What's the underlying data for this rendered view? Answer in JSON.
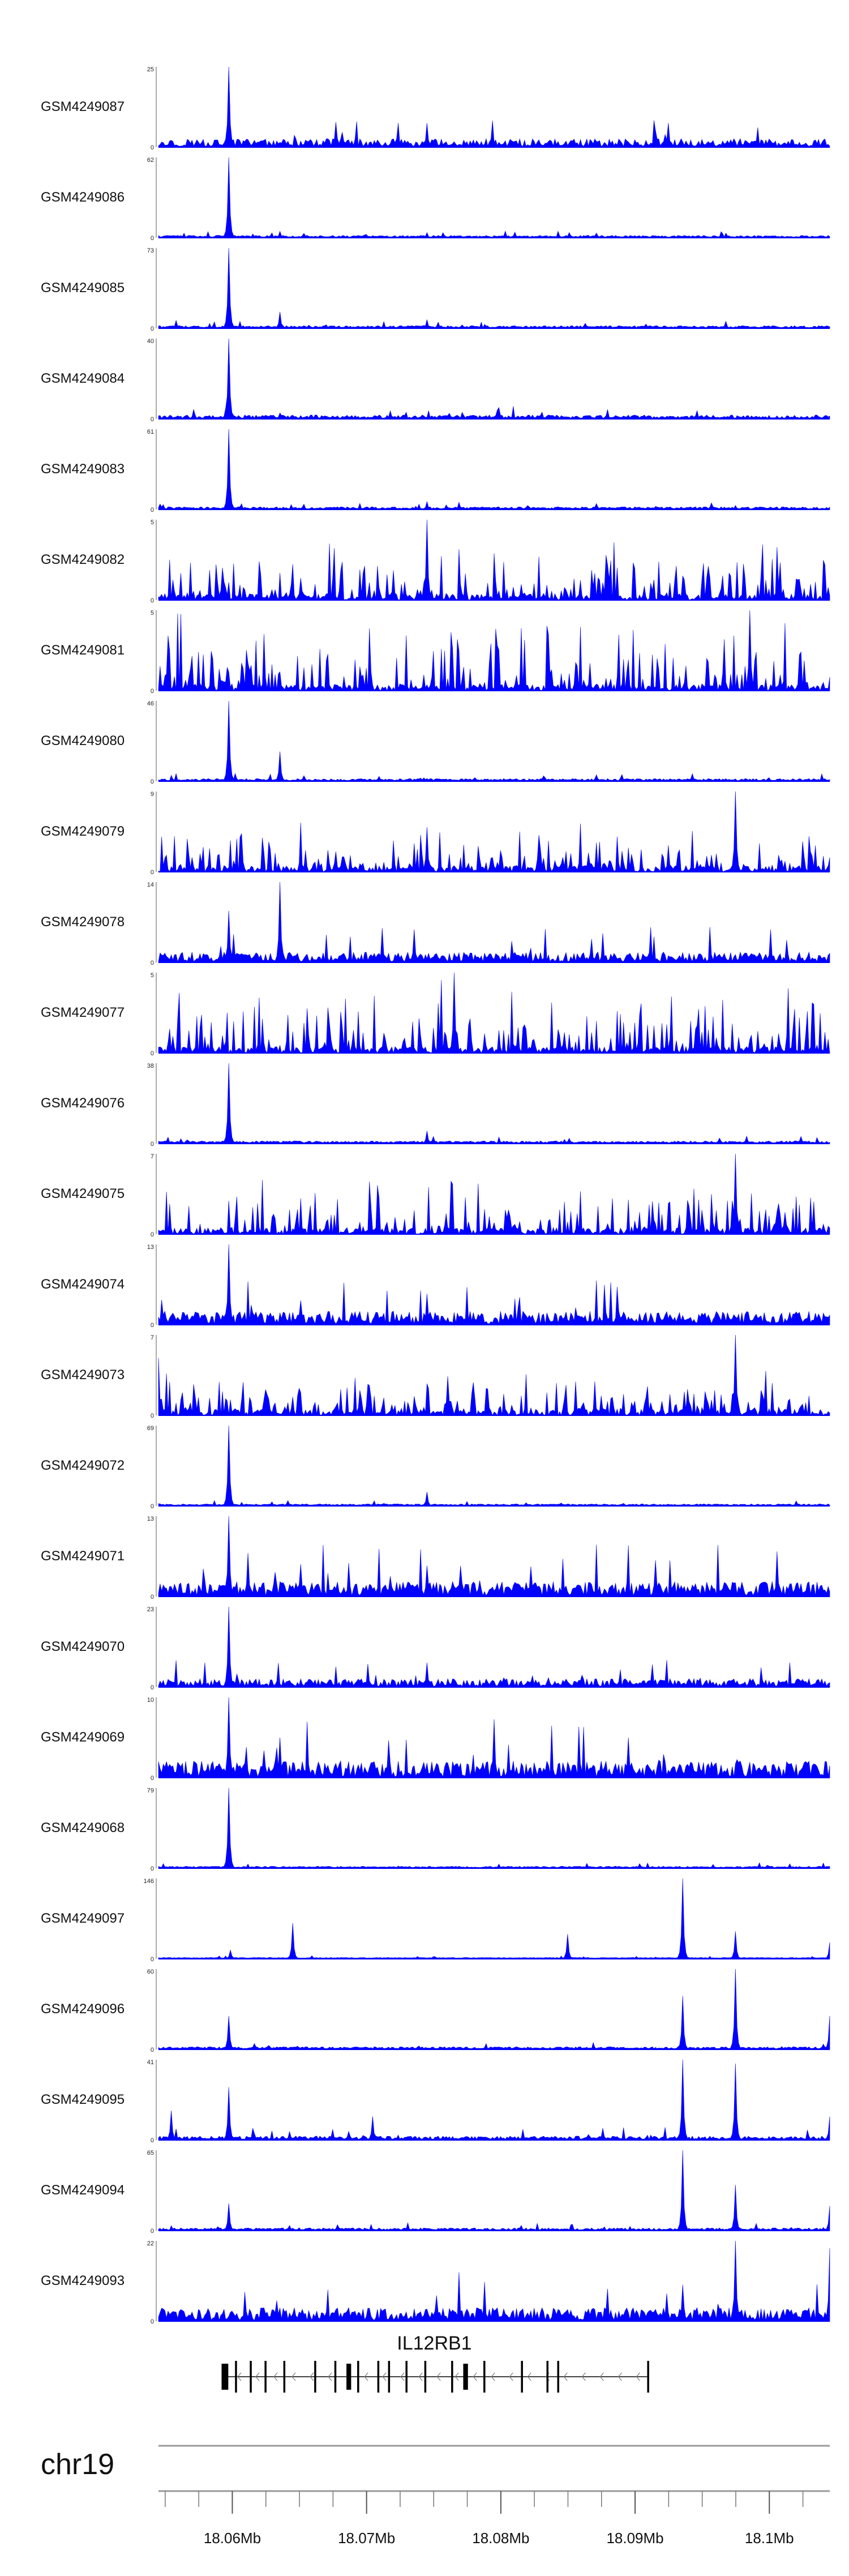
{
  "chart_data": {
    "type": "area",
    "title": "",
    "xlabel": "",
    "ylabel": "",
    "color": "#0000ff",
    "tracks": [
      {
        "name": "GSM4249087",
        "ymax": 25,
        "peaks": [
          [
            18.05975,
            25
          ],
          [
            18.0745,
            7.5
          ],
          [
            18.0635,
            1.5
          ]
        ],
        "noise": 0.12,
        "style": "chip"
      },
      {
        "name": "GSM4249086",
        "ymax": 62,
        "peaks": [
          [
            18.05975,
            62
          ],
          [
            18.0635,
            5
          ],
          [
            18.0745,
            4
          ]
        ],
        "noise": 0.025,
        "style": "chip"
      },
      {
        "name": "GSM4249085",
        "ymax": 73,
        "peaks": [
          [
            18.05975,
            73
          ],
          [
            18.0635,
            15
          ],
          [
            18.0745,
            8
          ]
        ],
        "noise": 0.03,
        "style": "chip"
      },
      {
        "name": "GSM4249084",
        "ymax": 40,
        "peaks": [
          [
            18.05975,
            40
          ],
          [
            18.0635,
            3
          ]
        ],
        "noise": 0.05,
        "style": "chip"
      },
      {
        "name": "GSM4249083",
        "ymax": 61,
        "peaks": [
          [
            18.05975,
            61
          ],
          [
            18.0745,
            6
          ]
        ],
        "noise": 0.03,
        "style": "chip"
      },
      {
        "name": "GSM4249082",
        "ymax": 5,
        "peaks": [
          [
            18.0745,
            5
          ]
        ],
        "noise": 0.35,
        "style": "sparse"
      },
      {
        "name": "GSM4249081",
        "ymax": 5,
        "peaks": [
          [
            18.0985,
            5
          ]
        ],
        "noise": 0.45,
        "style": "sparse"
      },
      {
        "name": "GSM4249080",
        "ymax": 46,
        "peaks": [
          [
            18.05975,
            46
          ],
          [
            18.0635,
            17
          ]
        ],
        "noise": 0.03,
        "style": "chip"
      },
      {
        "name": "GSM4249079",
        "ymax": 9,
        "peaks": [
          [
            18.0975,
            9
          ],
          [
            18.0745,
            5
          ]
        ],
        "noise": 0.3,
        "style": "sparse"
      },
      {
        "name": "GSM4249078",
        "ymax": 14,
        "peaks": [
          [
            18.0635,
            14
          ],
          [
            18.05975,
            9
          ]
        ],
        "noise": 0.15,
        "style": "chip"
      },
      {
        "name": "GSM4249077",
        "ymax": 5,
        "peaks": [
          [
            18.0765,
            5
          ]
        ],
        "noise": 0.45,
        "style": "sparse"
      },
      {
        "name": "GSM4249076",
        "ymax": 38,
        "peaks": [
          [
            18.05975,
            38
          ],
          [
            18.0745,
            6
          ]
        ],
        "noise": 0.03,
        "style": "chip"
      },
      {
        "name": "GSM4249075",
        "ymax": 7,
        "peaks": [
          [
            18.0975,
            7
          ]
        ],
        "noise": 0.35,
        "style": "sparse"
      },
      {
        "name": "GSM4249074",
        "ymax": 13,
        "peaks": [
          [
            18.05975,
            13
          ],
          [
            18.0745,
            5
          ]
        ],
        "noise": 0.2,
        "style": "chip"
      },
      {
        "name": "GSM4249073",
        "ymax": 7,
        "peaks": [
          [
            18.0975,
            7
          ],
          [
            18.0545,
            5
          ]
        ],
        "noise": 0.3,
        "style": "sparse"
      },
      {
        "name": "GSM4249072",
        "ymax": 69,
        "peaks": [
          [
            18.05975,
            69
          ],
          [
            18.0745,
            12
          ]
        ],
        "noise": 0.02,
        "style": "chip"
      },
      {
        "name": "GSM4249071",
        "ymax": 13,
        "peaks": [
          [
            18.05975,
            13
          ],
          [
            18.0745,
            5
          ]
        ],
        "noise": 0.22,
        "style": "chip"
      },
      {
        "name": "GSM4249070",
        "ymax": 23,
        "peaks": [
          [
            18.05975,
            23
          ],
          [
            18.0745,
            7
          ]
        ],
        "noise": 0.12,
        "style": "chip"
      },
      {
        "name": "GSM4249069",
        "ymax": 10,
        "peaks": [
          [
            18.05975,
            10
          ],
          [
            18.0635,
            5
          ],
          [
            18.0895,
            5
          ]
        ],
        "noise": 0.25,
        "style": "chip"
      },
      {
        "name": "GSM4249068",
        "ymax": 79,
        "peaks": [
          [
            18.05975,
            79
          ]
        ],
        "noise": 0.02,
        "style": "chip"
      },
      {
        "name": "GSM4249097",
        "ymax": 146,
        "peaks": [
          [
            18.0935,
            146
          ],
          [
            18.0645,
            65
          ],
          [
            18.085,
            45
          ],
          [
            18.0975,
            50
          ],
          [
            18.0598,
            16
          ],
          [
            18.10445,
            30
          ]
        ],
        "noise": 0.01,
        "style": "chip"
      },
      {
        "name": "GSM4249096",
        "ymax": 60,
        "peaks": [
          [
            18.0975,
            60
          ],
          [
            18.0935,
            40
          ],
          [
            18.05975,
            25
          ],
          [
            18.10445,
            25
          ]
        ],
        "noise": 0.03,
        "style": "chip"
      },
      {
        "name": "GSM4249095",
        "ymax": 41,
        "peaks": [
          [
            18.0935,
            41
          ],
          [
            18.0975,
            39
          ],
          [
            18.05975,
            27
          ],
          [
            18.0555,
            15
          ],
          [
            18.0705,
            12
          ],
          [
            18.10445,
            12
          ]
        ],
        "noise": 0.05,
        "style": "chip"
      },
      {
        "name": "GSM4249094",
        "ymax": 65,
        "peaks": [
          [
            18.0935,
            65
          ],
          [
            18.0975,
            37
          ],
          [
            18.05975,
            22
          ],
          [
            18.10445,
            20
          ]
        ],
        "noise": 0.03,
        "style": "chip"
      },
      {
        "name": "GSM4249093",
        "ymax": 22,
        "peaks": [
          [
            18.0975,
            22
          ],
          [
            18.10445,
            20
          ],
          [
            18.0935,
            10
          ]
        ],
        "noise": 0.2,
        "style": "chip"
      }
    ],
    "x_range": [
      18.0545,
      18.1045
    ],
    "gene": {
      "name": "IL12RB1",
      "start": 18.0592,
      "end": 18.0909,
      "strand": "-",
      "exons": [
        [
          18.0592,
          18.0597
        ],
        [
          18.0602,
          18.06025
        ],
        [
          18.0613,
          18.06135
        ],
        [
          18.0624,
          18.06245
        ],
        [
          18.0638,
          18.06385
        ],
        [
          18.0661,
          18.06615
        ],
        [
          18.0676,
          18.06765
        ],
        [
          18.0685,
          18.06885
        ],
        [
          18.0693,
          18.06935
        ],
        [
          18.0708,
          18.07085
        ],
        [
          18.0716,
          18.07165
        ],
        [
          18.0729,
          18.07295
        ],
        [
          18.0743,
          18.07435
        ],
        [
          18.0763,
          18.07635
        ],
        [
          18.0772,
          18.07755
        ],
        [
          18.0787,
          18.07875
        ],
        [
          18.0815,
          18.08155
        ],
        [
          18.0834,
          18.08345
        ],
        [
          18.0842,
          18.08425
        ],
        [
          18.0909,
          18.09095
        ]
      ]
    },
    "chromosome": "chr19",
    "ticks": [
      18.06,
      18.07,
      18.08,
      18.09,
      18.1
    ],
    "tick_labels": [
      "18.06Mb",
      "18.07Mb",
      "18.08Mb",
      "18.09Mb",
      "18.1Mb"
    ]
  }
}
